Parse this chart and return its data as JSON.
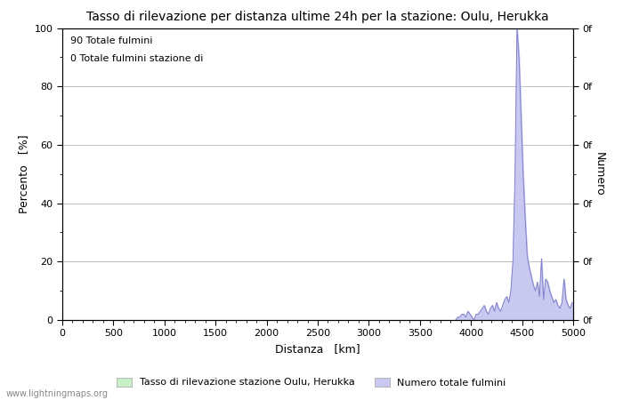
{
  "title": "Tasso di rilevazione per distanza ultime 24h per la stazione: Oulu, Herukka",
  "xlabel": "Distanza   [km]",
  "ylabel_left": "Percento   [%]",
  "ylabel_right": "Numero",
  "annotation_line1": "90 Totale fulmini",
  "annotation_line2": "0 Totale fulmini stazione di",
  "xlim": [
    0,
    5000
  ],
  "ylim_left": [
    0,
    100
  ],
  "ylim_right": [
    0,
    100
  ],
  "xticks": [
    0,
    500,
    1000,
    1500,
    2000,
    2500,
    3000,
    3500,
    4000,
    4500,
    5000
  ],
  "yticks_left": [
    0,
    20,
    40,
    60,
    80,
    100
  ],
  "yticks_right_labels": [
    "0f",
    "0f",
    "0f",
    "0f",
    "0f",
    "0f"
  ],
  "yticks_right_pos": [
    0,
    20,
    40,
    60,
    80,
    100
  ],
  "legend_label1": "Tasso di rilevazione stazione Oulu, Herukka",
  "legend_label2": "Numero totale fulmini",
  "legend_color1": "#c8f0c8",
  "legend_color2": "#c8c8f0",
  "line_color": "#8080cc",
  "fill_color": "#c8c8f0",
  "watermark": "www.lightningmaps.org",
  "bg_color": "#ffffff",
  "grid_color": "#c0c0c0",
  "title_fontsize": 10,
  "axis_fontsize": 9,
  "tick_fontsize": 8,
  "annotation_fontsize": 8,
  "legend_fontsize": 8,
  "watermark_fontsize": 7,
  "x_data": [
    3850,
    3870,
    3890,
    3910,
    3930,
    3950,
    3970,
    3990,
    4010,
    4030,
    4050,
    4070,
    4090,
    4110,
    4130,
    4150,
    4170,
    4190,
    4210,
    4230,
    4250,
    4270,
    4290,
    4310,
    4330,
    4350,
    4370,
    4390,
    4410,
    4430,
    4450,
    4470,
    4490,
    4510,
    4530,
    4550,
    4570,
    4590,
    4610,
    4630,
    4650,
    4670,
    4690,
    4710,
    4730,
    4750,
    4770,
    4790,
    4810,
    4830,
    4850,
    4870,
    4890,
    4910,
    4930,
    4950,
    4970,
    4990
  ],
  "y_data": [
    0,
    1,
    1,
    2,
    2,
    1,
    3,
    2,
    1,
    0,
    2,
    2,
    3,
    4,
    5,
    3,
    2,
    4,
    5,
    3,
    6,
    4,
    3,
    5,
    7,
    8,
    6,
    10,
    20,
    48,
    100,
    90,
    70,
    50,
    35,
    22,
    18,
    15,
    12,
    10,
    13,
    8,
    21,
    7,
    14,
    13,
    10,
    8,
    6,
    7,
    5,
    4,
    6,
    14,
    7,
    5,
    4,
    6
  ]
}
